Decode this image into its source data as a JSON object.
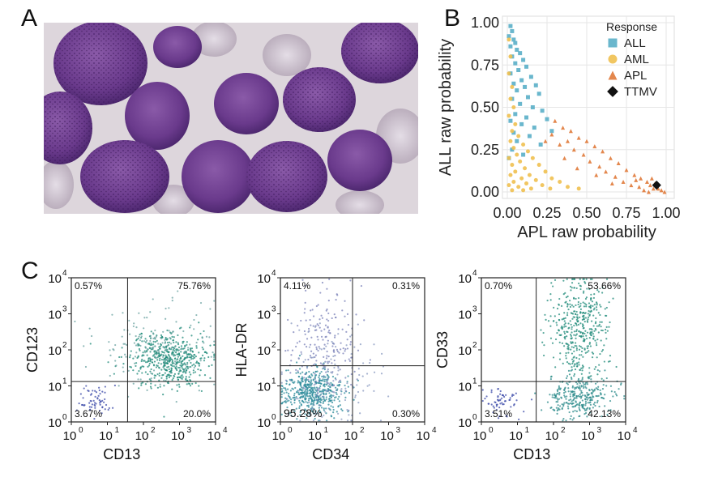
{
  "panels": {
    "a": "A",
    "b": "B",
    "c": "C"
  },
  "micrograph": {
    "description_icon": "blood-smear-micrograph-icon"
  },
  "chart_data": [
    {
      "type": "scatter",
      "panel": "B",
      "xlabel": "APL raw probability",
      "ylabel": "ALL raw probability",
      "xlim": [
        0,
        1
      ],
      "ylim": [
        0,
        1
      ],
      "xticks": [
        "0.00",
        "0.25",
        "0.50",
        "0.75",
        "1.00"
      ],
      "yticks": [
        "0.00",
        "0.25",
        "0.50",
        "0.75",
        "1.00"
      ],
      "legend": {
        "title": "Response",
        "position": "top-right",
        "entries": [
          {
            "label": "ALL",
            "shape": "square",
            "color": "#5aafc8"
          },
          {
            "label": "AML",
            "shape": "circle",
            "color": "#f0c050"
          },
          {
            "label": "APL",
            "shape": "triangle",
            "color": "#e07a3a"
          },
          {
            "label": "TTMV",
            "shape": "diamond",
            "color": "#111111"
          }
        ]
      },
      "series": [
        {
          "name": "ALL",
          "points": [
            [
              0.02,
              0.98
            ],
            [
              0.03,
              0.95
            ],
            [
              0.01,
              0.92
            ],
            [
              0.04,
              0.9
            ],
            [
              0.05,
              0.88
            ],
            [
              0.02,
              0.86
            ],
            [
              0.06,
              0.84
            ],
            [
              0.08,
              0.82
            ],
            [
              0.03,
              0.8
            ],
            [
              0.1,
              0.78
            ],
            [
              0.05,
              0.76
            ],
            [
              0.12,
              0.74
            ],
            [
              0.07,
              0.72
            ],
            [
              0.02,
              0.7
            ],
            [
              0.15,
              0.68
            ],
            [
              0.09,
              0.66
            ],
            [
              0.04,
              0.64
            ],
            [
              0.18,
              0.63
            ],
            [
              0.11,
              0.62
            ],
            [
              0.06,
              0.6
            ],
            [
              0.2,
              0.58
            ],
            [
              0.13,
              0.56
            ],
            [
              0.03,
              0.55
            ],
            [
              0.08,
              0.52
            ],
            [
              0.16,
              0.5
            ],
            [
              0.22,
              0.48
            ],
            [
              0.05,
              0.46
            ],
            [
              0.12,
              0.44
            ],
            [
              0.25,
              0.43
            ],
            [
              0.02,
              0.42
            ],
            [
              0.09,
              0.4
            ],
            [
              0.17,
              0.38
            ],
            [
              0.04,
              0.35
            ],
            [
              0.28,
              0.36
            ],
            [
              0.14,
              0.33
            ],
            [
              0.06,
              0.3
            ],
            [
              0.21,
              0.28
            ],
            [
              0.03,
              0.25
            ],
            [
              0.1,
              0.22
            ],
            [
              0.01,
              0.2
            ]
          ]
        },
        {
          "name": "AML",
          "points": [
            [
              0.01,
              0.9
            ],
            [
              0.02,
              0.8
            ],
            [
              0.01,
              0.7
            ],
            [
              0.03,
              0.62
            ],
            [
              0.02,
              0.55
            ],
            [
              0.04,
              0.5
            ],
            [
              0.01,
              0.45
            ],
            [
              0.05,
              0.4
            ],
            [
              0.03,
              0.36
            ],
            [
              0.07,
              0.33
            ],
            [
              0.02,
              0.3
            ],
            [
              0.1,
              0.28
            ],
            [
              0.04,
              0.26
            ],
            [
              0.13,
              0.24
            ],
            [
              0.06,
              0.22
            ],
            [
              0.01,
              0.2
            ],
            [
              0.16,
              0.2
            ],
            [
              0.08,
              0.18
            ],
            [
              0.03,
              0.16
            ],
            [
              0.2,
              0.16
            ],
            [
              0.11,
              0.14
            ],
            [
              0.05,
              0.12
            ],
            [
              0.24,
              0.12
            ],
            [
              0.14,
              0.1
            ],
            [
              0.02,
              0.1
            ],
            [
              0.09,
              0.08
            ],
            [
              0.28,
              0.08
            ],
            [
              0.18,
              0.07
            ],
            [
              0.04,
              0.06
            ],
            [
              0.33,
              0.06
            ],
            [
              0.12,
              0.05
            ],
            [
              0.22,
              0.04
            ],
            [
              0.01,
              0.04
            ],
            [
              0.38,
              0.03
            ],
            [
              0.07,
              0.03
            ],
            [
              0.27,
              0.02
            ],
            [
              0.15,
              0.02
            ],
            [
              0.03,
              0.01
            ],
            [
              0.45,
              0.02
            ],
            [
              0.1,
              0.01
            ]
          ]
        },
        {
          "name": "APL",
          "points": [
            [
              0.3,
              0.42
            ],
            [
              0.35,
              0.38
            ],
            [
              0.4,
              0.36
            ],
            [
              0.28,
              0.34
            ],
            [
              0.45,
              0.32
            ],
            [
              0.38,
              0.3
            ],
            [
              0.5,
              0.3
            ],
            [
              0.33,
              0.28
            ],
            [
              0.55,
              0.27
            ],
            [
              0.42,
              0.25
            ],
            [
              0.6,
              0.24
            ],
            [
              0.48,
              0.22
            ],
            [
              0.65,
              0.2
            ],
            [
              0.36,
              0.2
            ],
            [
              0.52,
              0.18
            ],
            [
              0.7,
              0.17
            ],
            [
              0.58,
              0.15
            ],
            [
              0.44,
              0.14
            ],
            [
              0.75,
              0.13
            ],
            [
              0.62,
              0.12
            ],
            [
              0.8,
              0.1
            ],
            [
              0.68,
              0.09
            ],
            [
              0.84,
              0.08
            ],
            [
              0.73,
              0.06
            ],
            [
              0.88,
              0.06
            ],
            [
              0.78,
              0.04
            ],
            [
              0.9,
              0.04
            ],
            [
              0.83,
              0.03
            ],
            [
              0.92,
              0.02
            ],
            [
              0.86,
              0.01
            ],
            [
              0.95,
              0.02
            ],
            [
              0.89,
              0.0
            ],
            [
              0.93,
              0.05
            ],
            [
              0.97,
              0.01
            ],
            [
              0.81,
              0.07
            ],
            [
              0.91,
              0.08
            ],
            [
              0.24,
              0.3
            ],
            [
              0.56,
              0.1
            ],
            [
              0.66,
              0.05
            ],
            [
              0.99,
              0.0
            ]
          ]
        },
        {
          "name": "TTMV",
          "points": [
            [
              0.94,
              0.04
            ]
          ]
        }
      ]
    },
    {
      "type": "scatter",
      "panel": "C1",
      "xlabel": "CD13",
      "ylabel": "CD123",
      "xticks": [
        "10^0",
        "10^1",
        "10^2",
        "10^3",
        "10^4"
      ],
      "yticks": [
        "10^0",
        "10^1",
        "10^2",
        "10^3",
        "10^4"
      ],
      "quadrants": {
        "top_left": "0.57%",
        "top_right": "75.76%",
        "bottom_left": "3.67%",
        "bottom_right": "20.0%"
      }
    },
    {
      "type": "scatter",
      "panel": "C2",
      "xlabel": "CD34",
      "ylabel": "HLA-DR",
      "xticks": [
        "10^0",
        "10^1",
        "10^2",
        "10^3",
        "10^4"
      ],
      "yticks": [
        "10^0",
        "10^1",
        "10^2",
        "10^3",
        "10^4"
      ],
      "quadrants": {
        "top_left": "4.11%",
        "top_right": "0.31%",
        "bottom_left": "95.28%",
        "bottom_right": "0.30%"
      }
    },
    {
      "type": "scatter",
      "panel": "C3",
      "xlabel": "CD13",
      "ylabel": "CD33",
      "xticks": [
        "10^0",
        "10^1",
        "10^2",
        "10^3",
        "10^4"
      ],
      "yticks": [
        "10^0",
        "10^1",
        "10^2",
        "10^3",
        "10^4"
      ],
      "quadrants": {
        "top_left": "0.70%",
        "top_right": "53.66%",
        "bottom_left": "3.51%",
        "bottom_right": "42.13%"
      }
    }
  ]
}
